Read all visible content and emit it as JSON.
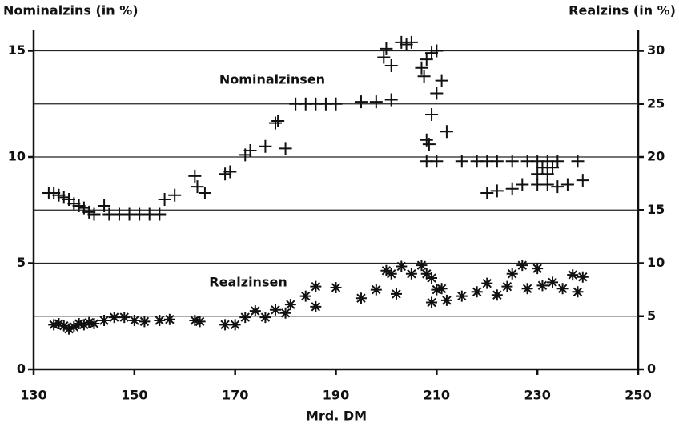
{
  "chart_data": {
    "type": "scatter",
    "y_label": "Nominalzins (in %)",
    "y2_label": "Realzins (in %)",
    "x_label": "Mrd. DM",
    "xlim": [
      130,
      250
    ],
    "xticks": [
      130,
      150,
      170,
      190,
      210,
      230,
      250
    ],
    "ylim": [
      0,
      16
    ],
    "yticks": [
      0,
      5,
      10,
      15
    ],
    "y2lim": [
      0,
      32
    ],
    "y2ticks": [
      0,
      5,
      10,
      15,
      20,
      25,
      30
    ],
    "grid": true,
    "series": [
      {
        "name": "Nominalzinsen",
        "color": "#111111",
        "marker": "plus",
        "x": [
          133,
          134,
          135,
          136,
          137,
          138,
          139,
          140,
          141,
          142,
          144,
          145,
          147,
          149,
          151,
          153,
          155,
          156,
          158,
          162,
          162.5,
          164,
          168,
          169,
          172,
          173,
          176,
          178,
          178.5,
          180,
          182,
          184,
          186,
          188,
          190,
          195,
          198,
          201,
          199.5,
          200,
          201,
          203,
          204,
          205,
          207,
          207.5,
          208,
          209,
          210,
          209,
          210,
          211,
          212,
          208,
          208.5,
          208,
          210,
          215,
          218,
          220,
          222,
          225,
          228,
          230,
          232,
          234,
          238,
          220,
          222,
          225,
          227,
          230,
          232,
          234,
          236,
          239,
          230,
          232,
          231,
          233
        ],
        "values": [
          8.3,
          8.3,
          8.2,
          8.1,
          8.0,
          7.8,
          7.7,
          7.6,
          7.4,
          7.3,
          7.7,
          7.3,
          7.3,
          7.3,
          7.3,
          7.3,
          7.3,
          8.0,
          8.2,
          9.1,
          8.6,
          8.3,
          9.2,
          9.3,
          10.1,
          10.3,
          10.5,
          11.6,
          11.7,
          10.4,
          12.5,
          12.5,
          12.5,
          12.5,
          12.5,
          12.6,
          12.6,
          12.7,
          14.7,
          15.1,
          14.3,
          15.4,
          15.3,
          15.4,
          14.2,
          13.8,
          14.6,
          14.9,
          15.0,
          12.0,
          13.0,
          13.6,
          11.2,
          10.8,
          10.6,
          9.8,
          9.8,
          9.8,
          9.8,
          9.8,
          9.8,
          9.8,
          9.8,
          9.8,
          9.8,
          9.8,
          9.8,
          8.3,
          8.4,
          8.5,
          8.7,
          8.7,
          8.7,
          8.6,
          8.7,
          8.9,
          9.2,
          9.2,
          9.5,
          9.5
        ]
      },
      {
        "name": "Realzinsen",
        "color": "#111111",
        "marker": "asterisk",
        "axis": "y2",
        "x": [
          134,
          135,
          136,
          137,
          138,
          139,
          140,
          141,
          142,
          144,
          146,
          148,
          150,
          152,
          155,
          157,
          162,
          163,
          168,
          170,
          172,
          174,
          176,
          178,
          180,
          181,
          184,
          186,
          186,
          190,
          195,
          198,
          200,
          201,
          202,
          203,
          205,
          207,
          208,
          209,
          209,
          210,
          211,
          212,
          215,
          218,
          220,
          222,
          224,
          225,
          227,
          228,
          230,
          231,
          233,
          235,
          237,
          238,
          239
        ],
        "values": [
          4.2,
          4.3,
          4.1,
          3.8,
          4.0,
          4.3,
          4.2,
          4.4,
          4.3,
          4.6,
          4.9,
          4.9,
          4.6,
          4.5,
          4.6,
          4.7,
          4.6,
          4.5,
          4.2,
          4.2,
          4.9,
          5.5,
          4.9,
          5.6,
          5.3,
          6.1,
          6.9,
          7.8,
          5.9,
          7.7,
          6.7,
          7.5,
          9.3,
          9.0,
          7.1,
          9.7,
          9.0,
          9.8,
          9.0,
          8.6,
          6.3,
          7.5,
          7.6,
          6.5,
          6.9,
          7.3,
          8.1,
          7.0,
          7.8,
          9.0,
          9.8,
          7.6,
          9.5,
          7.9,
          8.2,
          7.6,
          8.9,
          7.3,
          8.7
        ]
      }
    ]
  }
}
